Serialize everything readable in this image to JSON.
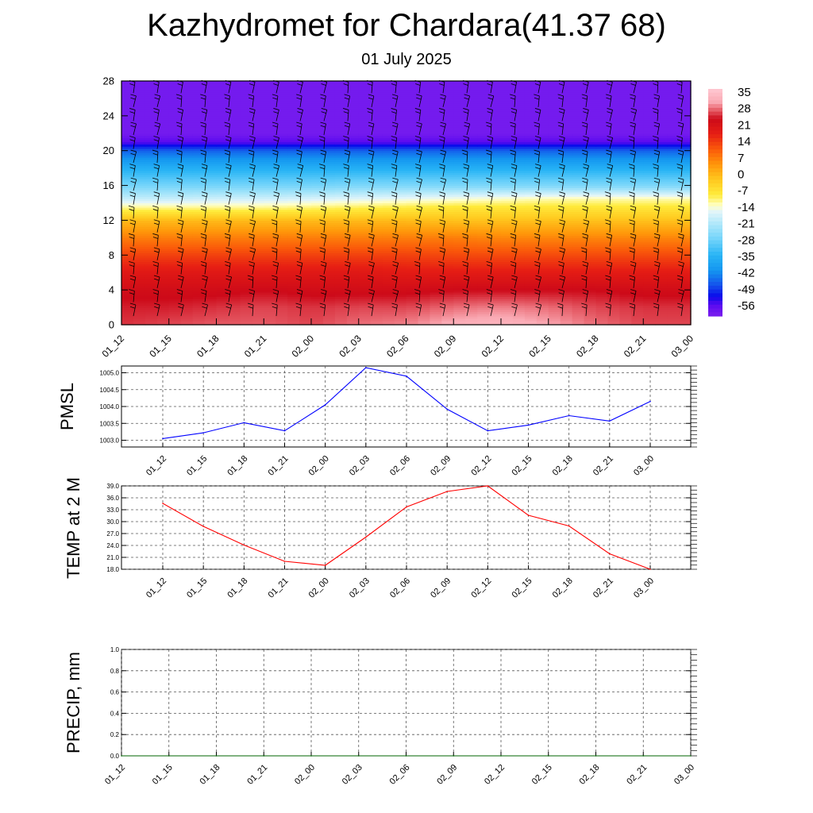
{
  "title": "Kazhydromet for Chardara(41.37 68)",
  "subtitle": "01 July 2025",
  "time_labels": [
    "01_12",
    "01_15",
    "01_18",
    "01_21",
    "02_00",
    "02_03",
    "02_06",
    "02_09",
    "02_12",
    "02_15",
    "02_18",
    "02_21",
    "03_00"
  ],
  "chart_data": [
    {
      "type": "heatmap",
      "description_of_field": "vertical temperature cross-section with wind barbs",
      "x": [
        "01_12",
        "01_15",
        "01_18",
        "01_21",
        "02_00",
        "02_03",
        "02_06",
        "02_09",
        "02_12",
        "02_15",
        "02_18",
        "02_21",
        "03_00"
      ],
      "ylim": [
        0,
        28
      ],
      "y_ticks": [
        0,
        4,
        8,
        12,
        16,
        20,
        24,
        28
      ],
      "colorbar_labels": [
        "35",
        "28",
        "21",
        "14",
        "7",
        "0",
        "-7",
        "-14",
        "-21",
        "-28",
        "-35",
        "-42",
        "-49",
        "-56"
      ],
      "colorbar_range": [
        -63,
        42
      ],
      "level_temps": [
        {
          "level": 0,
          "temps": [
            30,
            31,
            32,
            32,
            31,
            33,
            34,
            37,
            38,
            36,
            33,
            31,
            31
          ]
        },
        {
          "level": 2,
          "temps": [
            29,
            29,
            30,
            31,
            30,
            31,
            31,
            33,
            34,
            33,
            31,
            30,
            30
          ]
        },
        {
          "level": 4,
          "temps": [
            27,
            27,
            27,
            28,
            27,
            27,
            27,
            28,
            28,
            28,
            28,
            27,
            27
          ]
        },
        {
          "level": 6,
          "temps": [
            23,
            23,
            23,
            23,
            23,
            23,
            22,
            22,
            22,
            22,
            22,
            22,
            22
          ]
        },
        {
          "level": 8,
          "temps": [
            17,
            17,
            17,
            17,
            17,
            17,
            17,
            16,
            16,
            16,
            16,
            16,
            16
          ]
        },
        {
          "level": 10,
          "temps": [
            10,
            10,
            10,
            10,
            10,
            10,
            10,
            10,
            9,
            9,
            9,
            9,
            9
          ]
        },
        {
          "level": 12,
          "temps": [
            2,
            2,
            2,
            2,
            2,
            2,
            2,
            1,
            1,
            1,
            1,
            1,
            1
          ]
        },
        {
          "level": 13.5,
          "temps": [
            -10,
            -10,
            -10,
            -10,
            -9,
            -8,
            -7,
            -6,
            -6,
            -6,
            -6,
            -6,
            -6
          ]
        },
        {
          "level": 14.5,
          "temps": [
            -18,
            -18,
            -17,
            -17,
            -16,
            -15,
            -14,
            -13,
            -12,
            -11,
            -11,
            -11,
            -11
          ]
        },
        {
          "level": 16,
          "temps": [
            -27,
            -27,
            -27,
            -27,
            -27,
            -26,
            -26,
            -26,
            -26,
            -26,
            -26,
            -26,
            -26
          ]
        },
        {
          "level": 18,
          "temps": [
            -36,
            -36,
            -36,
            -36,
            -36,
            -36,
            -36,
            -36,
            -36,
            -36,
            -36,
            -36,
            -36
          ]
        },
        {
          "level": 20,
          "temps": [
            -47,
            -47,
            -47,
            -47,
            -47,
            -47,
            -47,
            -47,
            -47,
            -47,
            -47,
            -47,
            -47
          ]
        },
        {
          "level": 21,
          "temps": [
            -58,
            -58,
            -58,
            -58,
            -58,
            -58,
            -58,
            -58,
            -58,
            -58,
            -58,
            -58,
            -58
          ]
        },
        {
          "level": 22,
          "temps": [
            -62,
            -62,
            -62,
            -62,
            -62,
            -62,
            -62,
            -62,
            -62,
            -62,
            -62,
            -62,
            -62
          ]
        },
        {
          "level": 28,
          "temps": [
            -62,
            -62,
            -62,
            -62,
            -62,
            -62,
            -62,
            -62,
            -62,
            -62,
            -62,
            -62,
            -62
          ]
        }
      ]
    },
    {
      "type": "line",
      "ylabel": "PMSL",
      "x": [
        "01_12",
        "01_15",
        "01_18",
        "01_21",
        "02_00",
        "02_03",
        "02_06",
        "02_09",
        "02_12",
        "02_15",
        "02_18",
        "02_21",
        "03_00"
      ],
      "values": [
        1003.05,
        1003.22,
        1003.52,
        1003.28,
        1004.05,
        1005.15,
        1004.9,
        1003.92,
        1003.28,
        1003.45,
        1003.73,
        1003.57,
        1004.15
      ],
      "ylim": [
        1002.8,
        1005.2
      ],
      "y_ticks": [
        "1003.0",
        "1003.5",
        "1004.0",
        "1004.5",
        "1005.0"
      ],
      "color": "#0000ff"
    },
    {
      "type": "line",
      "ylabel": "TEMP at 2 M",
      "x": [
        "01_12",
        "01_15",
        "01_18",
        "01_21",
        "02_00",
        "02_03",
        "02_06",
        "02_09",
        "02_12",
        "02_15",
        "02_18",
        "02_21",
        "03_00"
      ],
      "values": [
        34.6,
        28.8,
        24.1,
        20.0,
        19.0,
        26.1,
        33.7,
        37.6,
        39.0,
        31.6,
        28.9,
        21.9,
        18.0
      ],
      "ylim": [
        18.0,
        39.0
      ],
      "y_ticks": [
        "18.0",
        "21.0",
        "24.0",
        "27.0",
        "30.0",
        "33.0",
        "36.0",
        "39.0"
      ],
      "color": "#ff0000"
    },
    {
      "type": "line",
      "ylabel": "PRECIP, mm",
      "x": [
        "01_12",
        "01_15",
        "01_18",
        "01_21",
        "02_00",
        "02_03",
        "02_06",
        "02_09",
        "02_12",
        "02_15",
        "02_18",
        "02_21",
        "03_00"
      ],
      "values": [
        0,
        0,
        0,
        0,
        0,
        0,
        0,
        0,
        0,
        0,
        0,
        0,
        0
      ],
      "ylim": [
        0.0,
        1.0
      ],
      "y_ticks": [
        "0.0",
        "0.2",
        "0.4",
        "0.6",
        "0.8",
        "1.0"
      ],
      "color": "#006400"
    }
  ]
}
